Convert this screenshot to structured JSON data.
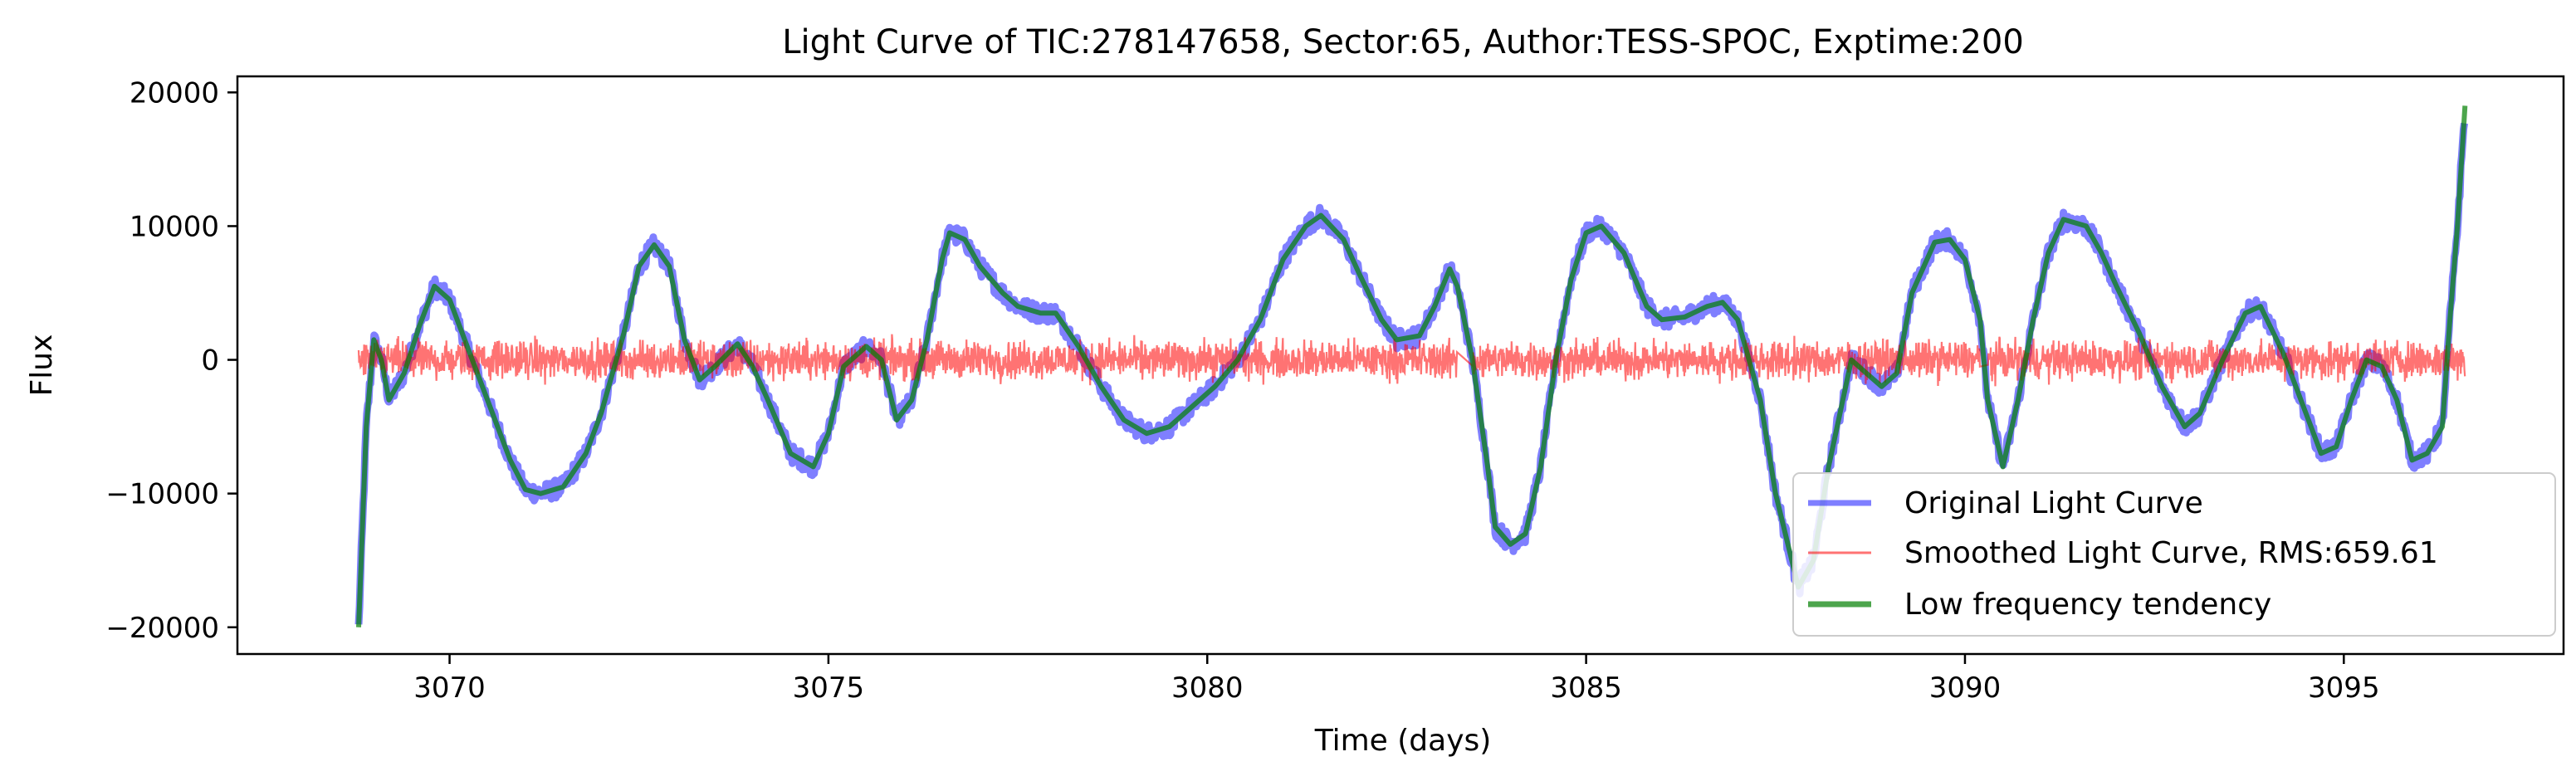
{
  "chart_data": {
    "type": "line",
    "title": "Light Curve of TIC:278147658, Sector:65, Author:TESS-SPOC, Exptime:200",
    "xlabel": "Time (days)",
    "ylabel": "Flux",
    "xlim": [
      3067.2,
      3097.9
    ],
    "ylim": [
      -22000,
      21200
    ],
    "x_ticks": [
      3070,
      3075,
      3080,
      3085,
      3090,
      3095
    ],
    "x_tick_labels": [
      "3070",
      "3075",
      "3080",
      "3085",
      "3090",
      "3095"
    ],
    "y_ticks": [
      -20000,
      -10000,
      0,
      10000,
      20000
    ],
    "y_tick_labels": [
      "−20000",
      "−10000",
      "0",
      "10000",
      "20000"
    ],
    "grid": false,
    "legend_position": "lower-right",
    "data_gaps": [
      [
        3083.3,
        3083.5
      ],
      [
        3090.2,
        3090.3
      ]
    ],
    "series": [
      {
        "name": "Original Light Curve",
        "color": "#0000ff",
        "opacity": 0.5,
        "band_halfwidth": 700,
        "x": [
          3068.8,
          3068.9,
          3069.0,
          3069.1,
          3069.2,
          3069.4,
          3069.6,
          3069.8,
          3070.0,
          3070.2,
          3070.5,
          3070.8,
          3071.0,
          3071.2,
          3071.5,
          3071.8,
          3072.0,
          3072.3,
          3072.5,
          3072.7,
          3072.9,
          3073.1,
          3073.3,
          3073.5,
          3073.8,
          3074.0,
          3074.2,
          3074.5,
          3074.8,
          3075.0,
          3075.2,
          3075.5,
          3075.7,
          3075.9,
          3076.1,
          3076.3,
          3076.5,
          3076.6,
          3076.8,
          3077.0,
          3077.3,
          3077.5,
          3077.8,
          3078.0,
          3078.3,
          3078.6,
          3078.9,
          3079.2,
          3079.5,
          3079.8,
          3080.1,
          3080.4,
          3080.7,
          3081.0,
          3081.3,
          3081.5,
          3081.8,
          3082.0,
          3082.3,
          3082.5,
          3082.8,
          3083.0,
          3083.2,
          3083.3,
          3083.5,
          3083.7,
          3083.8,
          3084.0,
          3084.2,
          3084.4,
          3084.6,
          3084.8,
          3085.0,
          3085.2,
          3085.5,
          3085.8,
          3086.0,
          3086.3,
          3086.6,
          3086.8,
          3087.0,
          3087.3,
          3087.5,
          3087.8,
          3088.0,
          3088.2,
          3088.5,
          3088.7,
          3088.9,
          3089.1,
          3089.3,
          3089.6,
          3089.8,
          3090.0,
          3090.2,
          3090.3,
          3090.5,
          3090.7,
          3090.9,
          3091.1,
          3091.3,
          3091.6,
          3091.8,
          3092.0,
          3092.3,
          3092.6,
          3092.9,
          3093.1,
          3093.4,
          3093.7,
          3093.9,
          3094.2,
          3094.5,
          3094.7,
          3094.9,
          3095.1,
          3095.3,
          3095.5,
          3095.7,
          3095.9,
          3096.1,
          3096.3,
          3096.4,
          3096.5,
          3096.6
        ],
        "y": [
          -20000,
          -5000,
          1500,
          0,
          -3000,
          -1000,
          2500,
          5500,
          4500,
          1500,
          -3000,
          -7500,
          -9700,
          -10000,
          -9500,
          -7000,
          -4000,
          2000,
          7000,
          8600,
          7000,
          1500,
          -1500,
          -500,
          1200,
          -500,
          -3000,
          -7000,
          -8000,
          -5500,
          -500,
          1000,
          0,
          -4500,
          -3000,
          1500,
          7500,
          9500,
          9000,
          7000,
          5000,
          4000,
          3500,
          3500,
          1000,
          -2000,
          -4500,
          -5500,
          -5000,
          -3500,
          -2000,
          0,
          3000,
          7500,
          10000,
          10800,
          9000,
          6500,
          3000,
          1500,
          1800,
          4000,
          6800,
          5500,
          0,
          -8000,
          -12500,
          -13800,
          -13000,
          -8000,
          0,
          6000,
          9500,
          10000,
          8000,
          4000,
          3000,
          3200,
          4000,
          4300,
          3000,
          -3000,
          -10000,
          -17000,
          -15000,
          -8000,
          0,
          -1000,
          -2000,
          -1000,
          5000,
          8800,
          9000,
          7500,
          3000,
          -3000,
          -8000,
          -3000,
          3000,
          8000,
          10500,
          10000,
          8000,
          5500,
          2000,
          -2000,
          -5000,
          -4000,
          0,
          3500,
          4000,
          500,
          -4000,
          -7000,
          -6500,
          -3000,
          0,
          -500,
          -3000,
          -7500,
          -7000,
          -5000,
          3000,
          10000,
          19000
        ]
      },
      {
        "name": "Smoothed Light Curve, RMS:659.61",
        "color": "#ff0000",
        "opacity": 0.55,
        "rms": 659.61,
        "x_start": 3068.8,
        "x_end": 3096.6
      },
      {
        "name": "Low frequency tendency",
        "color": "#007f00",
        "opacity": 0.7,
        "x": [
          3068.8,
          3068.9,
          3069.0,
          3069.1,
          3069.2,
          3069.4,
          3069.6,
          3069.8,
          3070.0,
          3070.2,
          3070.5,
          3070.8,
          3071.0,
          3071.2,
          3071.5,
          3071.8,
          3072.0,
          3072.3,
          3072.5,
          3072.7,
          3072.9,
          3073.1,
          3073.3,
          3073.5,
          3073.8,
          3074.0,
          3074.2,
          3074.5,
          3074.8,
          3075.0,
          3075.2,
          3075.5,
          3075.7,
          3075.9,
          3076.1,
          3076.3,
          3076.5,
          3076.6,
          3076.8,
          3077.0,
          3077.3,
          3077.5,
          3077.8,
          3078.0,
          3078.3,
          3078.6,
          3078.9,
          3079.2,
          3079.5,
          3079.8,
          3080.1,
          3080.4,
          3080.7,
          3081.0,
          3081.3,
          3081.5,
          3081.8,
          3082.0,
          3082.3,
          3082.5,
          3082.8,
          3083.0,
          3083.2,
          3083.3,
          3083.5,
          3083.7,
          3083.8,
          3084.0,
          3084.2,
          3084.4,
          3084.6,
          3084.8,
          3085.0,
          3085.2,
          3085.5,
          3085.8,
          3086.0,
          3086.3,
          3086.6,
          3086.8,
          3087.0,
          3087.3,
          3087.5,
          3087.8,
          3088.0,
          3088.2,
          3088.5,
          3088.7,
          3088.9,
          3089.1,
          3089.3,
          3089.6,
          3089.8,
          3090.0,
          3090.2,
          3090.3,
          3090.5,
          3090.7,
          3090.9,
          3091.1,
          3091.3,
          3091.6,
          3091.8,
          3092.0,
          3092.3,
          3092.6,
          3092.9,
          3093.1,
          3093.4,
          3093.7,
          3093.9,
          3094.2,
          3094.5,
          3094.7,
          3094.9,
          3095.1,
          3095.3,
          3095.5,
          3095.7,
          3095.9,
          3096.1,
          3096.3,
          3096.4,
          3096.5,
          3096.6
        ],
        "y": [
          -20000,
          -5000,
          1500,
          0,
          -3000,
          -1000,
          2500,
          5500,
          4500,
          1500,
          -3000,
          -7500,
          -9700,
          -10000,
          -9500,
          -7000,
          -4000,
          2000,
          7000,
          8600,
          7000,
          1500,
          -1500,
          -500,
          1200,
          -500,
          -3000,
          -7000,
          -8000,
          -5500,
          -500,
          1000,
          0,
          -4500,
          -3000,
          1500,
          7500,
          9500,
          9000,
          7000,
          5000,
          4000,
          3500,
          3500,
          1000,
          -2000,
          -4500,
          -5500,
          -5000,
          -3500,
          -2000,
          0,
          3000,
          7500,
          10000,
          10800,
          9000,
          6500,
          3000,
          1500,
          1800,
          4000,
          6800,
          5500,
          0,
          -8000,
          -12500,
          -13800,
          -13000,
          -8000,
          0,
          6000,
          9500,
          10000,
          8000,
          4000,
          3000,
          3200,
          4000,
          4300,
          3000,
          -3000,
          -10000,
          -17000,
          -15000,
          -8000,
          0,
          -1000,
          -2000,
          -1000,
          5000,
          8800,
          9000,
          7500,
          3000,
          -3000,
          -8000,
          -3000,
          3000,
          8000,
          10500,
          10000,
          8000,
          5500,
          2000,
          -2000,
          -5000,
          -4000,
          0,
          3500,
          4000,
          500,
          -4000,
          -7000,
          -6500,
          -3000,
          0,
          -500,
          -3000,
          -7500,
          -7000,
          -5000,
          3000,
          10000,
          19000
        ]
      }
    ]
  }
}
